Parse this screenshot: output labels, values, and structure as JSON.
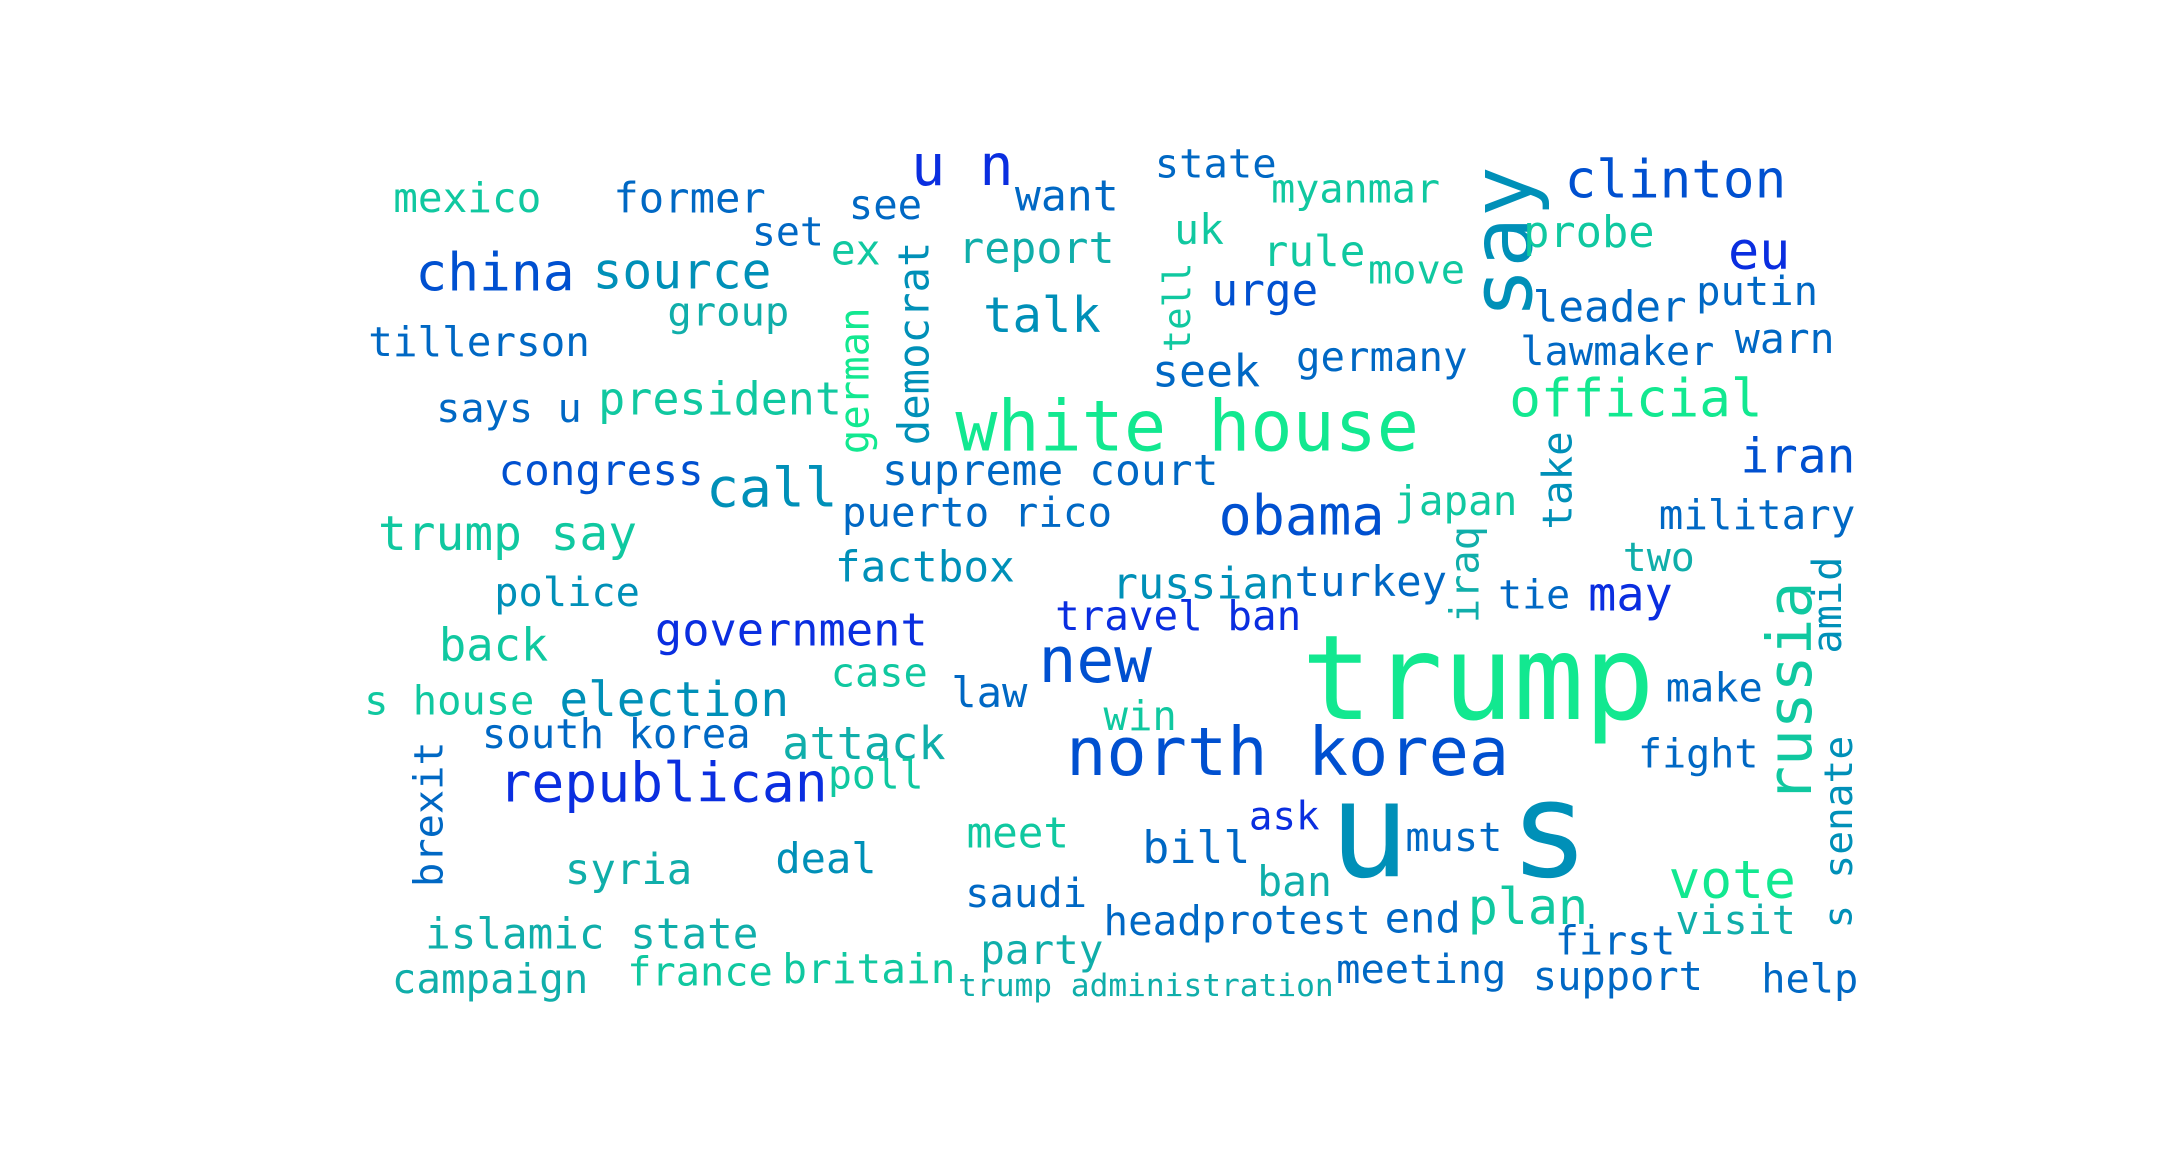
{
  "words": [
    "trump",
    "u",
    "s",
    "white house",
    "north korea",
    "say",
    "republican",
    "new",
    "russia",
    "china",
    "u n",
    "clinton",
    "official",
    "obama",
    "source",
    "call",
    "talk",
    "vote",
    "plan",
    "eu",
    "iran",
    "trump say",
    "election",
    "government",
    "attack",
    "back",
    "may",
    "urge",
    "seek",
    "bill",
    "deal",
    "syria",
    "meet",
    "law",
    "president",
    "congress",
    "supreme court",
    "puerto rico",
    "factbox",
    "russian",
    "turkey",
    "travel ban",
    "japan",
    "germany",
    "state",
    "myanmar",
    "uk",
    "rule",
    "move",
    "probe",
    "leader",
    "putin",
    "warn",
    "lawmaker",
    "military",
    "two",
    "tie",
    "amid",
    "make",
    "fight",
    "senate",
    "s",
    "visit",
    "first",
    "support",
    "help",
    "end",
    "must",
    "ask",
    "ban",
    "head",
    "protest",
    "meeting",
    "saudi",
    "party",
    "trump administration",
    "win",
    "case",
    "poll",
    "britain",
    "france",
    "islamic state",
    "campaign",
    "brexit",
    "south korea",
    "s house",
    "police",
    "says u",
    "tillerson",
    "group",
    "mexico",
    "former",
    "set",
    "see",
    "ex",
    "report",
    "want",
    "german",
    "democrat",
    "tell",
    "take",
    "iraq"
  ]
}
